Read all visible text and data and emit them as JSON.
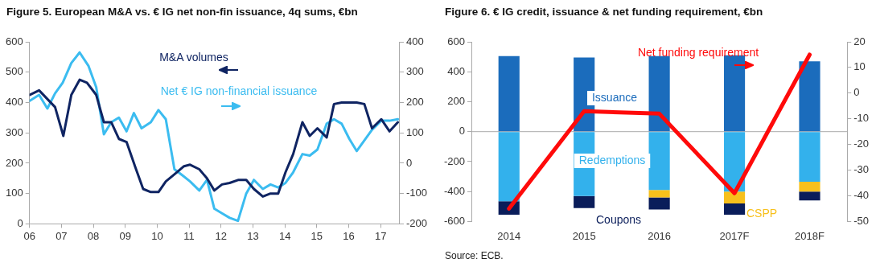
{
  "chart_data": [
    {
      "type": "line",
      "title": "Figure 5. European M&A vs. € IG net non-fin issuance, 4q sums, €bn",
      "xlim": [
        2006,
        2017.6
      ],
      "xticks": [
        {
          "value": 2006,
          "label": "06"
        },
        {
          "value": 2007,
          "label": "07"
        },
        {
          "value": 2008,
          "label": "08"
        },
        {
          "value": 2009,
          "label": "09"
        },
        {
          "value": 2010,
          "label": "10"
        },
        {
          "value": 2011,
          "label": "11"
        },
        {
          "value": 2012,
          "label": "12"
        },
        {
          "value": 2013,
          "label": "13"
        },
        {
          "value": 2014,
          "label": "14"
        },
        {
          "value": 2015,
          "label": "15"
        },
        {
          "value": 2016,
          "label": "16"
        },
        {
          "value": 2017,
          "label": "17"
        }
      ],
      "ylim": [
        0,
        600
      ],
      "yticks": [
        0,
        100,
        200,
        300,
        400,
        500,
        600
      ],
      "y2lim": [
        -200,
        400
      ],
      "y2ticks": [
        -200,
        -100,
        0,
        100,
        200,
        300,
        400
      ],
      "grid": false,
      "legend": false,
      "series": [
        {
          "name": "M&A volumes",
          "color": "#0f2462",
          "x": [
            2006,
            2006.3,
            2006.8,
            2007.06,
            2007.31,
            2007.57,
            2007.8,
            2008.09,
            2008.33,
            2008.56,
            2008.8,
            2009.04,
            2009.32,
            2009.56,
            2009.8,
            2010.04,
            2010.27,
            2010.56,
            2010.84,
            2011.03,
            2011.32,
            2011.56,
            2011.79,
            2012.03,
            2012.27,
            2012.55,
            2012.79,
            2013.03,
            2013.31,
            2013.55,
            2013.79,
            2014.02,
            2014.26,
            2014.55,
            2014.78,
            2015.02,
            2015.31,
            2015.54,
            2015.78,
            2016.02,
            2016.25,
            2016.49,
            2016.73,
            2017.02,
            2017.28,
            2017.54
          ],
          "values": [
            425,
            440,
            385,
            290,
            425,
            475,
            465,
            425,
            335,
            335,
            280,
            270,
            185,
            115,
            105,
            105,
            140,
            165,
            190,
            195,
            180,
            150,
            110,
            130,
            135,
            145,
            145,
            115,
            90,
            100,
            100,
            170,
            230,
            335,
            290,
            315,
            285,
            395,
            400,
            400,
            400,
            395,
            315,
            345,
            305,
            335
          ]
        },
        {
          "name": "Net € IG non-financial issuance",
          "color": "#3bbcf0",
          "axis": "y2",
          "x": [
            2006,
            2006.3,
            2006.56,
            2006.8,
            2007.04,
            2007.31,
            2007.57,
            2007.85,
            2008.09,
            2008.33,
            2008.56,
            2008.8,
            2009.04,
            2009.27,
            2009.51,
            2009.8,
            2010.04,
            2010.27,
            2010.54,
            2010.79,
            2011.03,
            2011.32,
            2011.56,
            2011.79,
            2012.03,
            2012.27,
            2012.53,
            2012.79,
            2013.03,
            2013.31,
            2013.55,
            2013.79,
            2014.02,
            2014.26,
            2014.55,
            2014.78,
            2015.02,
            2015.31,
            2015.54,
            2015.78,
            2016.02,
            2016.25,
            2016.49,
            2016.73,
            2017.02,
            2017.28,
            2017.54
          ],
          "values": [
            205,
            225,
            180,
            230,
            265,
            330,
            365,
            320,
            250,
            95,
            135,
            150,
            105,
            165,
            115,
            135,
            175,
            145,
            -20,
            -40,
            -60,
            -90,
            -55,
            -150,
            -165,
            -180,
            -190,
            -100,
            -55,
            -85,
            -70,
            -80,
            -65,
            -30,
            30,
            25,
            45,
            130,
            145,
            130,
            80,
            40,
            75,
            110,
            140,
            140,
            145
          ]
        }
      ]
    },
    {
      "type": "bar",
      "title": "Figure 6. € IG credit, issuance & net funding requirement, €bn",
      "categories": [
        "2014",
        "2015",
        "2016",
        "2017F",
        "2018F"
      ],
      "stacked": true,
      "ylim": [
        -600,
        600
      ],
      "yticks": [
        -600,
        -400,
        -200,
        0,
        200,
        400,
        600
      ],
      "y2lim": [
        -50,
        20
      ],
      "y2ticks": [
        -50,
        -40,
        -30,
        -20,
        -10,
        0,
        10,
        20
      ],
      "grid": false,
      "legend": false,
      "series": [
        {
          "name": "Issuance",
          "color": "#1b6cbc",
          "values": [
            505,
            495,
            505,
            510,
            470
          ]
        },
        {
          "name": "Redemptions",
          "color": "#33b1ec",
          "values": [
            -465,
            -430,
            -390,
            -400,
            -335
          ]
        },
        {
          "name": "CSPP",
          "color": "#f7c01c",
          "values": [
            null,
            null,
            -50,
            -80,
            -65
          ]
        },
        {
          "name": "Coupons",
          "color": "#0a1d5a",
          "values": [
            -90,
            -80,
            -80,
            -75,
            -60
          ]
        },
        {
          "name": "Net funding requirement",
          "color": "#ff0a0a",
          "type": "line",
          "axis": "y2",
          "values": [
            -45,
            -7,
            -8,
            -39,
            15
          ]
        }
      ],
      "ref_lines": [
        {
          "axis": "y",
          "value": 0,
          "color": "#aaaaaa"
        }
      ],
      "annotations": [
        "Source: ECB."
      ]
    }
  ]
}
